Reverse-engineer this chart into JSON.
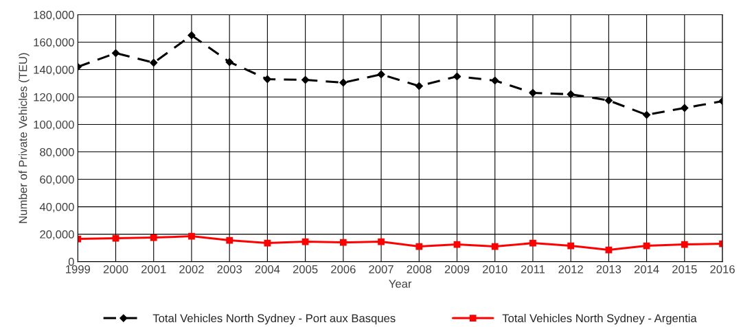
{
  "chart_data": {
    "type": "line",
    "xlabel": "Year",
    "ylabel": "Number of Private Vehicles (TEU)",
    "x": [
      1999,
      2000,
      2001,
      2002,
      2003,
      2004,
      2005,
      2006,
      2007,
      2008,
      2009,
      2010,
      2011,
      2012,
      2013,
      2014,
      2015,
      2016
    ],
    "series": [
      {
        "name": "Total Vehicles North Sydney - Port aux Basques",
        "color": "#000000",
        "marker": "diamond",
        "line_style": "dashed",
        "values": [
          142000,
          152000,
          145000,
          165000,
          145500,
          133000,
          132500,
          130500,
          136500,
          128000,
          135000,
          132000,
          123000,
          122000,
          117500,
          107000,
          112000,
          117000
        ]
      },
      {
        "name": "Total Vehicles North Sydney - Argentia",
        "color": "#ff0000",
        "marker": "square",
        "line_style": "solid",
        "values": [
          16500,
          17000,
          17500,
          18500,
          15500,
          13500,
          14500,
          14000,
          14500,
          11000,
          12500,
          11000,
          13500,
          11500,
          8500,
          11500,
          12500,
          13000
        ]
      }
    ],
    "xlim": [
      1999,
      2016
    ],
    "xticks": [
      1999,
      2000,
      2001,
      2002,
      2003,
      2004,
      2005,
      2006,
      2007,
      2008,
      2009,
      2010,
      2011,
      2012,
      2013,
      2014,
      2015,
      2016
    ],
    "ylim": [
      0,
      180000
    ],
    "yticks": [
      {
        "value": 0,
        "label": "0"
      },
      {
        "value": 20000,
        "label": "20,000"
      },
      {
        "value": 40000,
        "label": "40,000"
      },
      {
        "value": 60000,
        "label": "60,000"
      },
      {
        "value": 80000,
        "label": "80,000"
      },
      {
        "value": 100000,
        "label": "100,000"
      },
      {
        "value": 120000,
        "label": "120,000"
      },
      {
        "value": 140000,
        "label": "140,000"
      },
      {
        "value": 160000,
        "label": "160,000"
      },
      {
        "value": 180000,
        "label": "180,000"
      }
    ],
    "grid": true,
    "legend": "bottom"
  }
}
